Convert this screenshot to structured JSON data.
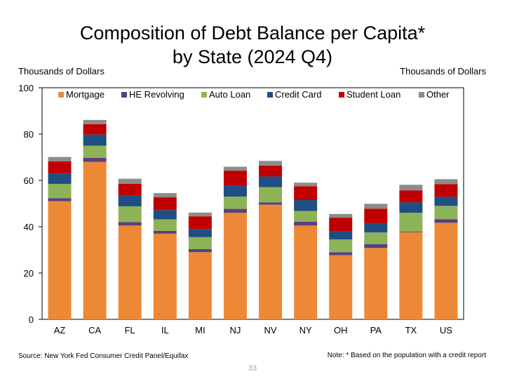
{
  "title_line1": "Composition of Debt Balance per Capita*",
  "title_line2": "by State (2024 Q4)",
  "unit_left": "Thousands of Dollars",
  "unit_right": "Thousands of Dollars",
  "source": "Source: New York Fed Consumer Credit Panel/Equifax",
  "note": "Note: * Based on the population with a credit report",
  "page_number": "33",
  "chart_data": {
    "type": "bar",
    "stacked": true,
    "categories": [
      "AZ",
      "CA",
      "FL",
      "IL",
      "MI",
      "NJ",
      "NV",
      "NY",
      "OH",
      "PA",
      "TX",
      "US"
    ],
    "ylim": [
      0,
      100
    ],
    "yticks": [
      0,
      20,
      40,
      60,
      80,
      100
    ],
    "ylabel": "Thousands of Dollars",
    "legend_position": "top",
    "series": [
      {
        "name": "Mortgage",
        "color": "#ED8936",
        "values": [
          51,
          68,
          40.5,
          37,
          29,
          46,
          49.5,
          40.5,
          27.7,
          30.8,
          37.6,
          41.7
        ]
      },
      {
        "name": "HE Revolving",
        "color": "#5B3F7E",
        "values": [
          1.3,
          1.7,
          1.5,
          1.2,
          1.3,
          1.7,
          1.0,
          1.7,
          1.3,
          1.7,
          0.3,
          1.5
        ]
      },
      {
        "name": "Auto Loan",
        "color": "#8DB357",
        "values": [
          6.2,
          5.3,
          6.8,
          5.0,
          5.2,
          5.3,
          6.6,
          4.6,
          5.5,
          5.0,
          8.1,
          5.8
        ]
      },
      {
        "name": "Credit Card",
        "color": "#1F4E82",
        "values": [
          4.5,
          4.8,
          4.7,
          4.0,
          3.5,
          4.7,
          4.6,
          4.7,
          3.5,
          4.0,
          4.5,
          3.9
        ]
      },
      {
        "name": "Student Loan",
        "color": "#C00000",
        "values": [
          5.2,
          4.5,
          5.0,
          5.5,
          5.5,
          6.5,
          4.7,
          6.0,
          5.9,
          6.3,
          5.2,
          5.5
        ]
      },
      {
        "name": "Other",
        "color": "#8C8C8C",
        "values": [
          1.9,
          1.8,
          2.2,
          1.8,
          1.6,
          1.7,
          2.0,
          1.5,
          1.6,
          2.1,
          2.4,
          2.1
        ]
      }
    ]
  }
}
